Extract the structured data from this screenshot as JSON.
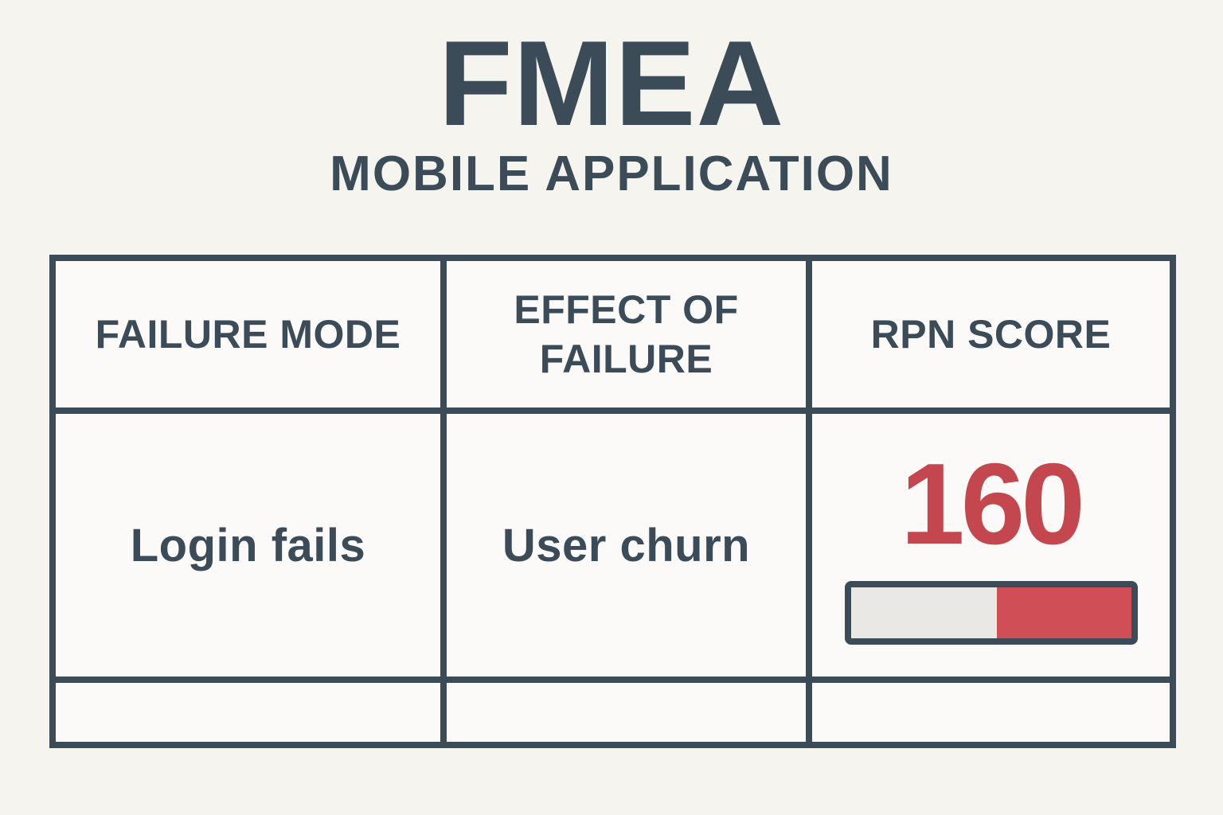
{
  "header": {
    "title": "FMEA",
    "subtitle": "MOBILE APPLICATION"
  },
  "table": {
    "columns": [
      {
        "key": "failure_mode",
        "label": "FAILURE MODE"
      },
      {
        "key": "effect_of_failure",
        "label": "EFFECT OF FAILURE"
      },
      {
        "key": "rpn_score",
        "label": "RPN SCORE"
      }
    ],
    "rows": [
      {
        "failure_mode": "Login fails",
        "effect_of_failure": "User churn",
        "rpn_score": "160",
        "rpn_bar": {
          "fill_side": "right",
          "fill_percent": "48%",
          "track_percent": "52%"
        }
      },
      {
        "failure_mode": "",
        "effect_of_failure": "",
        "rpn_score": ""
      }
    ]
  },
  "colors": {
    "slate": "#3c4b58",
    "red_text": "#c4474f",
    "red_fill": "#d04f57",
    "page_bg": "#f6f4ef",
    "cell_bg": "#fbfaf8",
    "bar_track": "#e9e8e4"
  }
}
